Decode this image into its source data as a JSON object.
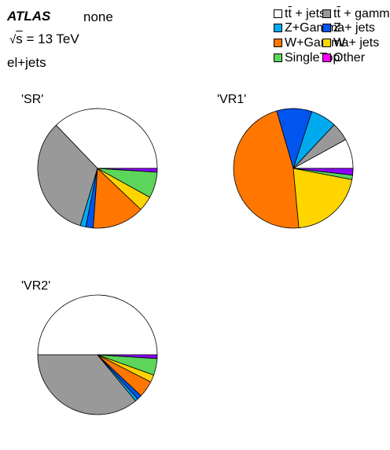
{
  "header": {
    "experiment": "ATLAS",
    "label": "none",
    "energy_sqrt": "s",
    "energy_rest": " = 13 TeV",
    "channel": "el+jets"
  },
  "legend": [
    {
      "pre": "t",
      "bar": "t",
      "post": " + jets",
      "color": "#ffffff"
    },
    {
      "pre": "t",
      "bar": "t",
      "post": " +  gamma",
      "color": "#999999"
    },
    {
      "pre": "Z+Gamma",
      "bar": "",
      "post": "",
      "color": "#00aaee"
    },
    {
      "pre": "Z + jets",
      "bar": "",
      "post": "",
      "color": "#0055ee"
    },
    {
      "pre": "W+Gamma",
      "bar": "",
      "post": "",
      "color": "#ff7700"
    },
    {
      "pre": "W + jets",
      "bar": "",
      "post": "",
      "color": "#ffd500"
    },
    {
      "pre": "SingleTop",
      "bar": "",
      "post": "",
      "color": "#5bd65b"
    },
    {
      "pre": "Other",
      "bar": "",
      "post": "",
      "color": "#ff00ff"
    }
  ],
  "chart_data": [
    {
      "type": "pie",
      "title": "'SR'",
      "categories": [
        "tt + jets",
        "tt +  gamma",
        "Z+Gamma",
        "Z + jets",
        "W+Gamma",
        "W + jets",
        "SingleTop",
        "Other"
      ],
      "values": [
        37.0,
        33.0,
        1.5,
        2.0,
        14.0,
        4.0,
        7.0,
        1.0
      ],
      "colors": [
        "#ffffff",
        "#999999",
        "#00aaee",
        "#0055ee",
        "#ff7700",
        "#ffd500",
        "#5bd65b",
        "#8b00ff"
      ]
    },
    {
      "type": "pie",
      "title": "'VR1'",
      "categories": [
        "tt + jets",
        "tt +  gamma",
        "Z+Gamma",
        "Z + jets",
        "W+Gamma",
        "W + jets",
        "SingleTop",
        "Other"
      ],
      "values": [
        8.0,
        5.0,
        7.0,
        9.5,
        47.0,
        20.5,
        1.2,
        1.8
      ],
      "colors": [
        "#ffffff",
        "#999999",
        "#00aaee",
        "#0055ee",
        "#ff7700",
        "#ffd500",
        "#5bd65b",
        "#8b00ff"
      ]
    },
    {
      "type": "pie",
      "title": "'VR2'",
      "categories": [
        "tt + jets",
        "tt +  gamma",
        "Z+Gamma",
        "Z + jets",
        "W+Gamma",
        "W + jets",
        "SingleTop",
        "Other"
      ],
      "values": [
        50.0,
        36.0,
        0.8,
        1.2,
        4.5,
        2.0,
        4.5,
        1.0
      ],
      "colors": [
        "#ffffff",
        "#999999",
        "#00aaee",
        "#0055ee",
        "#ff7700",
        "#ffd500",
        "#5bd65b",
        "#8b00ff"
      ]
    }
  ]
}
